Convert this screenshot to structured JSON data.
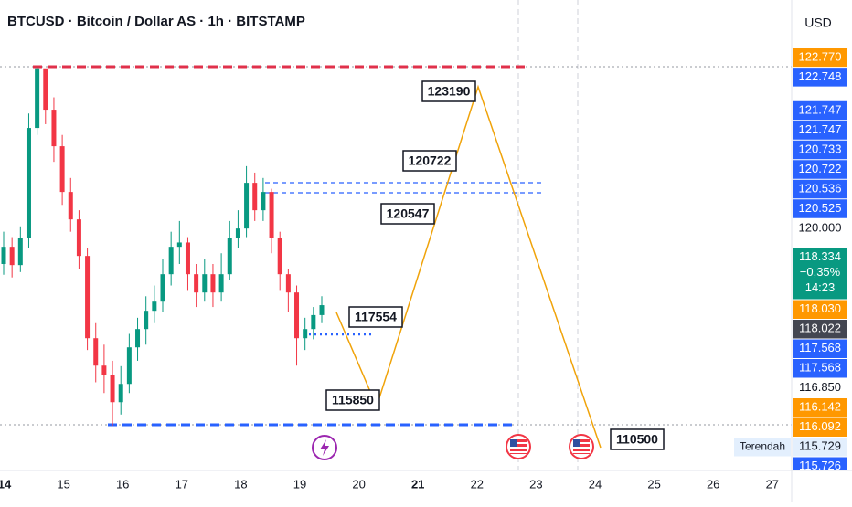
{
  "chart_data": {
    "type": "candlestick",
    "title": "BTCUSD · Bitcoin / Dollar AS · 1h · BITSTAMP",
    "currency": "USD",
    "categories": [
      "14",
      "15",
      "16",
      "17",
      "18",
      "19",
      "20",
      "21",
      "22",
      "23",
      "24",
      "25",
      "26",
      "27"
    ],
    "ylim": [
      115260,
      124010
    ],
    "up_color": "#089981",
    "down_color": "#f23645",
    "candles": [
      [
        119100,
        119700,
        118900,
        119420
      ],
      [
        119420,
        119600,
        118850,
        119080
      ],
      [
        119080,
        119800,
        118950,
        119590
      ],
      [
        119590,
        121900,
        119400,
        121630
      ],
      [
        121630,
        122770,
        121500,
        122740
      ],
      [
        122740,
        122700,
        121700,
        121970
      ],
      [
        121970,
        122200,
        121000,
        121290
      ],
      [
        121290,
        121500,
        120200,
        120440
      ],
      [
        120440,
        120700,
        119700,
        119930
      ],
      [
        119930,
        120100,
        119000,
        119250
      ],
      [
        119250,
        119400,
        117500,
        117720
      ],
      [
        117720,
        118000,
        116900,
        117210
      ],
      [
        117210,
        117600,
        116700,
        117040
      ],
      [
        117040,
        117300,
        116092,
        116530
      ],
      [
        116530,
        117200,
        116300,
        116870
      ],
      [
        116870,
        117800,
        116700,
        117550
      ],
      [
        117550,
        118100,
        117300,
        117890
      ],
      [
        117890,
        118500,
        117600,
        118230
      ],
      [
        118230,
        118700,
        118000,
        118400
      ],
      [
        118400,
        119200,
        118200,
        118910
      ],
      [
        118910,
        119700,
        118700,
        119420
      ],
      [
        119420,
        119900,
        119100,
        119500
      ],
      [
        119500,
        119600,
        118600,
        118910
      ],
      [
        118910,
        119100,
        118300,
        118570
      ],
      [
        118570,
        119200,
        118400,
        118910
      ],
      [
        118910,
        119100,
        118300,
        118570
      ],
      [
        118570,
        119300,
        118400,
        118910
      ],
      [
        118910,
        119900,
        118800,
        119590
      ],
      [
        119590,
        120100,
        119400,
        119760
      ],
      [
        119760,
        120920,
        119600,
        120610
      ],
      [
        120610,
        120800,
        119900,
        120100
      ],
      [
        120100,
        120700,
        119900,
        120440
      ],
      [
        120440,
        120500,
        119300,
        119590
      ],
      [
        119590,
        119700,
        118600,
        118910
      ],
      [
        118910,
        119000,
        118200,
        118570
      ],
      [
        118570,
        118700,
        117210,
        117720
      ],
      [
        117720,
        118100,
        117500,
        117890
      ],
      [
        117890,
        118300,
        117700,
        118150
      ],
      [
        118150,
        118500,
        118000,
        118334
      ]
    ],
    "price_labels": [
      {
        "value": 122770,
        "label": "122.770",
        "color": "#ff9800"
      },
      {
        "value": 122748,
        "label": "122.748",
        "color": "#2962ff"
      },
      {
        "value": 121747,
        "label": "121.747",
        "color": "#2962ff"
      },
      {
        "value": 121747,
        "label": "121.747",
        "color": "#2962ff"
      },
      {
        "value": 120733,
        "label": "120.733",
        "color": "#2962ff"
      },
      {
        "value": 120722,
        "label": "120.722",
        "color": "#2962ff"
      },
      {
        "value": 120536,
        "label": "120.536",
        "color": "#2962ff"
      },
      {
        "value": 120525,
        "label": "120.525",
        "color": "#2962ff"
      },
      {
        "value": 120000,
        "label": "120.000"
      },
      {
        "value": 118334,
        "label": "118.334",
        "color": "#089981",
        "extra": [
          "−0,35%",
          "14:23"
        ]
      },
      {
        "value": 118030,
        "label": "118.030",
        "color": "#ff9800"
      },
      {
        "value": 118022,
        "label": "118.022",
        "color": "#434651"
      },
      {
        "value": 117568,
        "label": "117.568",
        "color": "#2962ff"
      },
      {
        "value": 117568,
        "label": "117.568",
        "color": "#2962ff"
      },
      {
        "value": 116850,
        "label": "116.850"
      },
      {
        "value": 116142,
        "label": "116.142",
        "color": "#ff9800"
      },
      {
        "value": 116092,
        "label": "116.092",
        "color": "#ff9800"
      },
      {
        "value": 115729,
        "label": "115.729",
        "name": "Terendah",
        "color": "#e3effd"
      },
      {
        "value": 115726,
        "label": "115.726",
        "color": "#2962ff"
      }
    ],
    "annotations": [
      123190,
      120722,
      120547,
      117554,
      115850,
      110500
    ]
  }
}
